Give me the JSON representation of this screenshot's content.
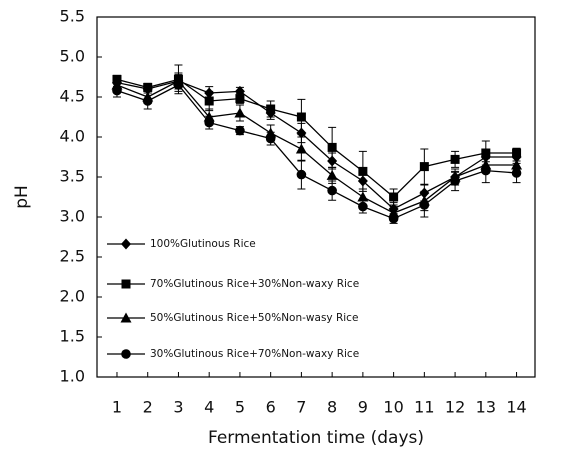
{
  "chart_data": {
    "type": "line",
    "x_label": "Fermentation time (days)",
    "y_label": "pH",
    "x": [
      1,
      2,
      3,
      4,
      5,
      6,
      7,
      8,
      9,
      10,
      11,
      12,
      13,
      14
    ],
    "xlim": [
      0.35,
      14.6
    ],
    "xticks": [
      1,
      2,
      3,
      4,
      5,
      6,
      7,
      8,
      9,
      10,
      11,
      12,
      13,
      14
    ],
    "ylim": [
      1.0,
      5.5
    ],
    "yticks": [
      {
        "value": 1,
        "label": "1.0"
      },
      1.5,
      {
        "value": 2,
        "label": "2.0"
      },
      2.5,
      {
        "value": 3,
        "label": "3.0"
      },
      3.5,
      {
        "value": 4,
        "label": "4.0"
      },
      4.5,
      {
        "value": 5,
        "label": "5.0"
      },
      5.5
    ],
    "legend_position": "lower left",
    "series": [
      {
        "name": "100%Glutinous Rice",
        "color": "#000000",
        "marker": "diamond",
        "values": [
          4.68,
          4.6,
          4.7,
          4.55,
          4.57,
          4.3,
          4.05,
          3.7,
          3.45,
          3.1,
          3.3,
          3.5,
          3.75,
          3.75
        ],
        "errors": [
          0.05,
          0.05,
          0.08,
          0.08,
          0.05,
          0.08,
          0.12,
          0.1,
          0.1,
          0.08,
          0.1,
          0.06,
          0.06,
          0.05
        ]
      },
      {
        "name": "70%Glutinous Rice+30%Non-waxy Rice",
        "color": "#000000",
        "marker": "square",
        "values": [
          4.72,
          4.62,
          4.72,
          4.45,
          4.48,
          4.35,
          4.25,
          3.87,
          3.57,
          3.25,
          3.63,
          3.72,
          3.8,
          3.8
        ],
        "errors": [
          0.05,
          0.05,
          0.18,
          0.12,
          0.06,
          0.1,
          0.22,
          0.25,
          0.25,
          0.1,
          0.22,
          0.1,
          0.15,
          0.06
        ]
      },
      {
        "name": "50%Glutinous Rice+50%Non-wasy Rice",
        "color": "#000000",
        "marker": "triangle",
        "values": [
          4.65,
          4.5,
          4.7,
          4.25,
          4.3,
          4.05,
          3.85,
          3.52,
          3.25,
          3.05,
          3.2,
          3.5,
          3.65,
          3.65
        ],
        "errors": [
          0.05,
          0.08,
          0.1,
          0.1,
          0.1,
          0.1,
          0.15,
          0.1,
          0.1,
          0.08,
          0.12,
          0.1,
          0.1,
          0.1
        ]
      },
      {
        "name": "30%Glutinous Rice+70%Non-waxy Rice",
        "color": "#000000",
        "marker": "circle",
        "values": [
          4.58,
          4.45,
          4.65,
          4.18,
          4.08,
          3.98,
          3.53,
          3.33,
          3.13,
          2.98,
          3.15,
          3.45,
          3.58,
          3.55
        ],
        "errors": [
          0.08,
          0.1,
          0.08,
          0.08,
          0.05,
          0.08,
          0.18,
          0.12,
          0.08,
          0.06,
          0.15,
          0.12,
          0.15,
          0.12
        ]
      }
    ]
  }
}
